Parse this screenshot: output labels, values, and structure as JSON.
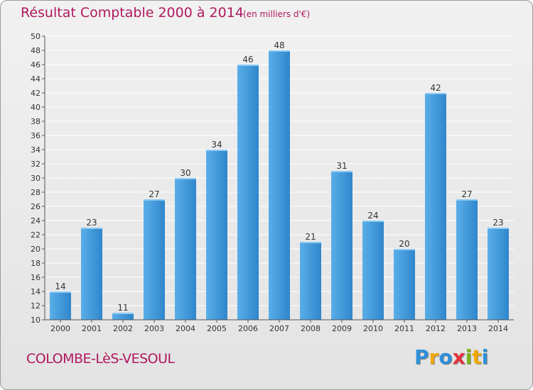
{
  "title": "Résultat Comptable 2000 à 2014",
  "subtitle": "(en milliers d'€)",
  "commune": "COLOMBE-LèS-VESOUL",
  "brand": {
    "letters": [
      "P",
      "r",
      "o",
      "x",
      "i",
      "t",
      "i"
    ],
    "colors": [
      "#2f8fd8",
      "#f2a900",
      "#2f8fd8",
      "#e5323b",
      "#7ab51d",
      "#f2a900",
      "#2f8fd8"
    ]
  },
  "colors": {
    "text_accent": "#b0185e",
    "bar_light": "#62b4ec",
    "bar_dark": "#2a7fc2",
    "axis": "#555555",
    "grid": "#ffffff"
  },
  "chart_data": {
    "type": "bar",
    "title": "Résultat Comptable 2000 à 2014",
    "subtitle": "(en milliers d'€)",
    "categories": [
      "2000",
      "2001",
      "2002",
      "2003",
      "2004",
      "2005",
      "2006",
      "2007",
      "2008",
      "2009",
      "2010",
      "2011",
      "2012",
      "2013",
      "2014"
    ],
    "values": [
      14,
      23,
      11,
      27,
      30,
      34,
      46,
      48,
      21,
      31,
      24,
      20,
      42,
      27,
      23
    ],
    "ylim": [
      10,
      50
    ],
    "ytick_step": 2,
    "xlabel": "",
    "ylabel": "",
    "grid": true,
    "data_labels": true
  }
}
